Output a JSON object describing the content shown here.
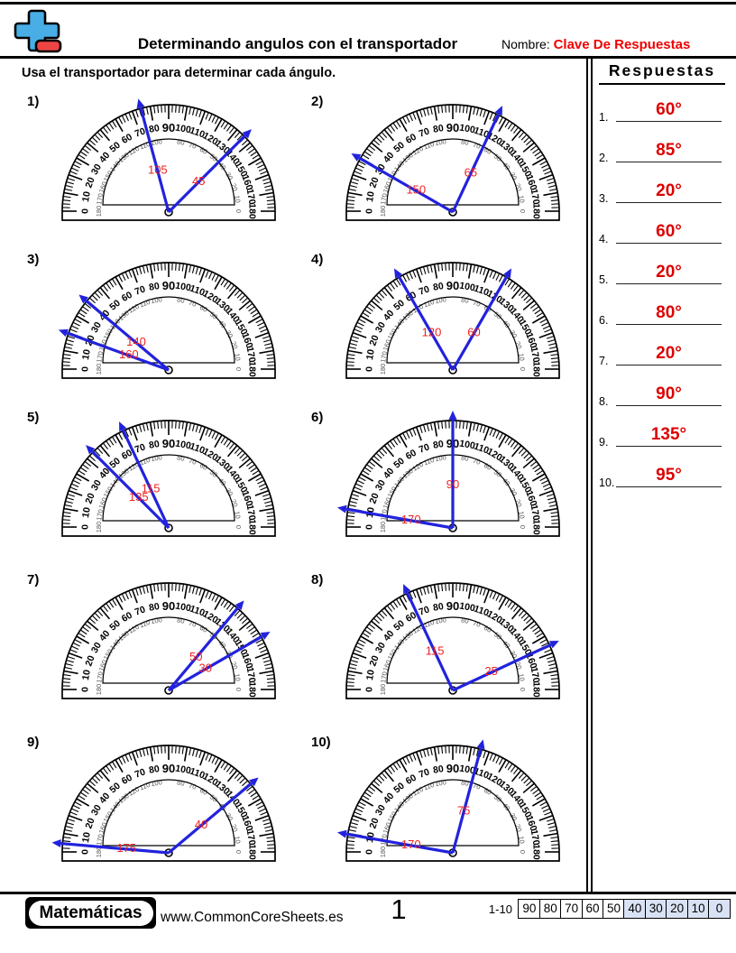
{
  "header": {
    "title": "Determinando angulos con el transportador",
    "name_label": "Nombre:",
    "name_value": "Clave De Respuestas"
  },
  "instruction": "Usa el transportador para determinar cada ángulo.",
  "answers": {
    "title": "Respuestas",
    "items": [
      {
        "n": "1.",
        "v": "60°"
      },
      {
        "n": "2.",
        "v": "85°"
      },
      {
        "n": "3.",
        "v": "20°"
      },
      {
        "n": "4.",
        "v": "60°"
      },
      {
        "n": "5.",
        "v": "20°"
      },
      {
        "n": "6.",
        "v": "80°"
      },
      {
        "n": "7.",
        "v": "20°"
      },
      {
        "n": "8.",
        "v": "90°"
      },
      {
        "n": "9.",
        "v": "135°"
      },
      {
        "n": "10.",
        "v": "95°"
      }
    ]
  },
  "protractor": {
    "outer_scale": [
      0,
      10,
      20,
      30,
      40,
      50,
      60,
      70,
      80,
      90,
      100,
      110,
      120,
      130,
      140,
      150,
      160,
      170,
      180
    ],
    "inner_scale": [
      180,
      170,
      160,
      150,
      140,
      130,
      120,
      110,
      100,
      null,
      80,
      70,
      60,
      50,
      40,
      30,
      20,
      10,
      0
    ],
    "minor_tick_step_deg": 2,
    "major_tick_step_deg": 10
  },
  "problems": [
    {
      "n": "1)",
      "rays": [
        {
          "angle": 105,
          "label": "105"
        },
        {
          "angle": 45,
          "label": "45"
        }
      ]
    },
    {
      "n": "2)",
      "rays": [
        {
          "angle": 150,
          "label": "150"
        },
        {
          "angle": 65,
          "label": "65"
        }
      ]
    },
    {
      "n": "3)",
      "rays": [
        {
          "angle": 140,
          "label": "140"
        },
        {
          "angle": 160,
          "label": "160"
        }
      ]
    },
    {
      "n": "4)",
      "rays": [
        {
          "angle": 120,
          "label": "120"
        },
        {
          "angle": 60,
          "label": "60"
        }
      ]
    },
    {
      "n": "5)",
      "rays": [
        {
          "angle": 115,
          "label": "115"
        },
        {
          "angle": 135,
          "label": "135"
        }
      ]
    },
    {
      "n": "6)",
      "rays": [
        {
          "angle": 90,
          "label": "90"
        },
        {
          "angle": 170,
          "label": "170"
        }
      ]
    },
    {
      "n": "7)",
      "rays": [
        {
          "angle": 50,
          "label": "50"
        },
        {
          "angle": 30,
          "label": "30"
        }
      ]
    },
    {
      "n": "8)",
      "rays": [
        {
          "angle": 115,
          "label": "115"
        },
        {
          "angle": 25,
          "label": "25"
        }
      ]
    },
    {
      "n": "9)",
      "rays": [
        {
          "angle": 175,
          "label": "175"
        },
        {
          "angle": 40,
          "label": "40"
        }
      ]
    },
    {
      "n": "10)",
      "rays": [
        {
          "angle": 170,
          "label": "170"
        },
        {
          "angle": 75,
          "label": "75"
        }
      ]
    }
  ],
  "colors": {
    "ray_blue": "#2222dd",
    "ray_label_red": "#ee2222",
    "answer_red": "#dd0000",
    "header_red": "#ee0000",
    "logo_blue": "#49aee6",
    "logo_red": "#ef4444",
    "score_shade": "#d9e2f4",
    "inner_scale_gray": "#555555"
  },
  "footer": {
    "brand": "Matemáticas",
    "site": "www.CommonCoreSheets.es",
    "page": "1",
    "range_label": "1-10",
    "scores": [
      "90",
      "80",
      "70",
      "60",
      "50",
      "40",
      "30",
      "20",
      "10",
      "0"
    ],
    "shaded_from_index": 5
  }
}
